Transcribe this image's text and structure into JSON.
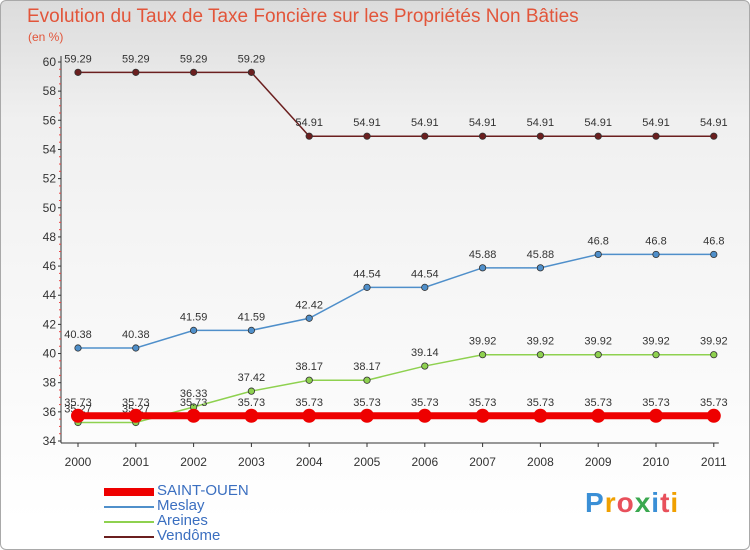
{
  "chart_data": {
    "type": "line",
    "title": "Evolution du Taux de Taxe Foncière sur les Propriétés Non Bâties",
    "unit_label": "(en %)",
    "xlabel": "",
    "ylabel": "",
    "categories": [
      "2000",
      "2001",
      "2002",
      "2003",
      "2004",
      "2005",
      "2006",
      "2007",
      "2008",
      "2009",
      "2010",
      "2011"
    ],
    "ylim": [
      34,
      60
    ],
    "yticks": [
      34,
      36,
      38,
      40,
      42,
      44,
      46,
      48,
      50,
      52,
      54,
      56,
      58,
      60
    ],
    "series": [
      {
        "name": "SAINT-OUEN",
        "color": "#ee0000",
        "labels": [
          "35.73",
          "35.73",
          "35.73",
          "35.73",
          "35.73",
          "35.73",
          "35.73",
          "35.73",
          "35.73",
          "35.73",
          "35.73",
          "35.73"
        ],
        "values": [
          35.73,
          35.73,
          35.73,
          35.73,
          35.73,
          35.73,
          35.73,
          35.73,
          35.73,
          35.73,
          35.73,
          35.73
        ]
      },
      {
        "name": "Meslay",
        "color": "#4f8fca",
        "labels": [
          "40.38",
          "40.38",
          "41.59",
          "41.59",
          "42.42",
          "44.54",
          "44.54",
          "45.88",
          "45.88",
          "46.8",
          "46.8",
          "46.8"
        ],
        "values": [
          40.38,
          40.38,
          41.59,
          41.59,
          42.42,
          44.54,
          44.54,
          45.88,
          45.88,
          46.8,
          46.8,
          46.8
        ]
      },
      {
        "name": "Areines",
        "color": "#8ed14f",
        "labels": [
          "35.27",
          "35.27",
          "36.33",
          "37.42",
          "38.17",
          "38.17",
          "39.14",
          "39.92",
          "39.92",
          "39.92",
          "39.92",
          "39.92"
        ],
        "values": [
          35.27,
          35.27,
          36.33,
          37.42,
          38.17,
          38.17,
          39.14,
          39.92,
          39.92,
          39.92,
          39.92,
          39.92
        ]
      },
      {
        "name": "Vendôme",
        "color": "#6b1f1f",
        "labels": [
          "59.29",
          "59.29",
          "59.29",
          "59.29",
          "54.91",
          "54.91",
          "54.91",
          "54.91",
          "54.91",
          "54.91",
          "54.91",
          "54.91"
        ],
        "values": [
          59.29,
          59.29,
          59.29,
          59.29,
          54.91,
          54.91,
          54.91,
          54.91,
          54.91,
          54.91,
          54.91,
          54.91
        ]
      }
    ],
    "legend_position": "bottom-left"
  },
  "logo": {
    "text": "Proxiti"
  }
}
